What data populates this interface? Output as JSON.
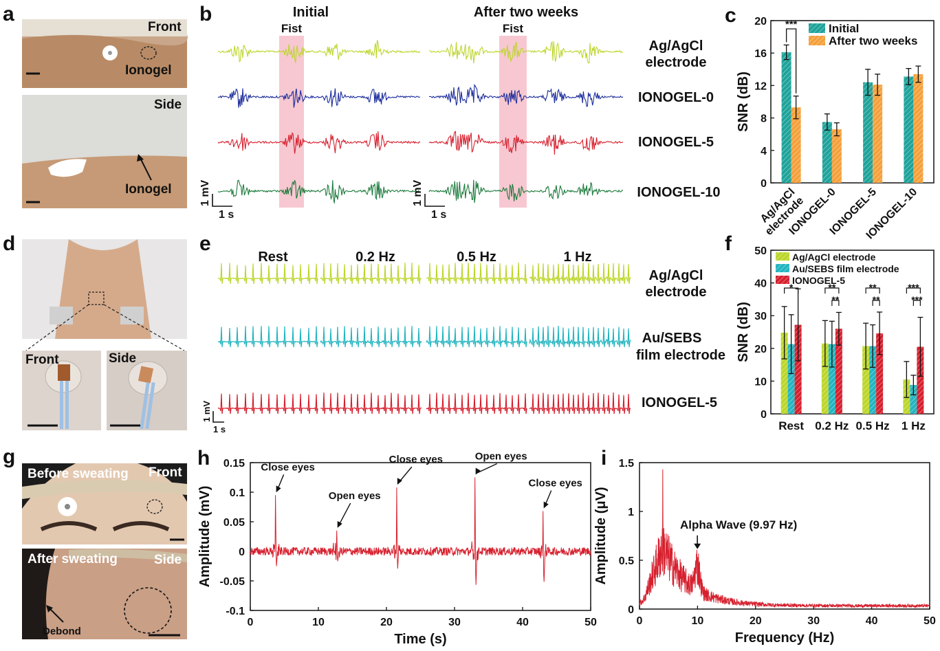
{
  "panels": {
    "a": {
      "letter": "a",
      "front_label": "Front",
      "side_label": "Side",
      "ionogel_label_top": "Ionogel",
      "ionogel_label_bottom": "Ionogel"
    },
    "b": {
      "letter": "b",
      "col_titles": [
        "Initial",
        "After two weeks"
      ],
      "fist_label": "Fist",
      "row_labels": [
        "Ag/AgCl",
        "electrode",
        "IONOGEL-0",
        "IONOGEL-5",
        "IONOGEL-10"
      ],
      "row_colors": [
        "#bcd62a",
        "#1a2b9b",
        "#d6202e",
        "#1c7a3c"
      ],
      "scale_v": "1 mV",
      "scale_t": "1 s"
    },
    "d": {
      "letter": "d",
      "front_label": "Front",
      "side_label": "Side"
    },
    "e": {
      "letter": "e",
      "col_titles": [
        "Rest",
        "0.2 Hz",
        "0.5 Hz",
        "1 Hz"
      ],
      "row_labels": [
        "Ag/AgCl",
        "electrode",
        "Au/SEBS",
        "film electrode",
        "IONOGEL-5"
      ],
      "row_colors": [
        "#bcd62a",
        "#22b5c0",
        "#d6202e"
      ],
      "scale_v": "1 mV",
      "scale_t": "1 s"
    },
    "g": {
      "letter": "g",
      "before_label": "Before sweating",
      "front_label": "Front",
      "after_label": "After sweating",
      "side_label": "Side",
      "debond_label": "Debond"
    }
  },
  "chart_data": [
    {
      "id": "c",
      "letter": "c",
      "type": "bar",
      "categories": [
        "Ag/AgCl electrode",
        "IONOGEL-0",
        "IONOGEL-5",
        "IONOGEL-10"
      ],
      "category_lines": [
        [
          "Ag/AgCl",
          "electrode"
        ],
        [
          "IONOGEL-0"
        ],
        [
          "IONOGEL-5"
        ],
        [
          "IONOGEL-10"
        ]
      ],
      "series": [
        {
          "name": "Initial",
          "color": "#1fa39a",
          "values": [
            16.1,
            7.5,
            12.4,
            13.1
          ],
          "errors": [
            0.9,
            1.0,
            1.6,
            1.0
          ]
        },
        {
          "name": "After two weeks",
          "color": "#f5a03a",
          "values": [
            9.3,
            6.6,
            12.1,
            13.4
          ],
          "errors": [
            1.4,
            0.8,
            1.3,
            1.0
          ]
        }
      ],
      "ylabel": "SNR (dB)",
      "xlabel": "",
      "ylim": [
        0,
        20
      ],
      "yticks": [
        0,
        4,
        8,
        12,
        16,
        20
      ],
      "legend_position": "top-right",
      "significance": [
        {
          "category": "Ag/AgCl electrode",
          "label": "***"
        }
      ]
    },
    {
      "id": "f",
      "letter": "f",
      "type": "bar",
      "categories": [
        "Rest",
        "0.2 Hz",
        "0.5 Hz",
        "1 Hz"
      ],
      "series": [
        {
          "name": "Ag/AgCl electrode",
          "color": "#bcd62a",
          "values": [
            24.8,
            21.5,
            20.7,
            10.5
          ],
          "errors": [
            8.0,
            7.0,
            7.0,
            5.5
          ]
        },
        {
          "name": "Au/SEBS film electrode",
          "color": "#22b5c0",
          "values": [
            21.3,
            21.3,
            20.7,
            8.8
          ],
          "errors": [
            9.0,
            7.0,
            6.5,
            3.0
          ]
        },
        {
          "name": "IONOGEL-5",
          "color": "#d6202e",
          "values": [
            27.2,
            26.0,
            24.6,
            20.5
          ],
          "errors": [
            11.0,
            5.0,
            6.5,
            9.0
          ]
        }
      ],
      "ylabel": "SNR (dB)",
      "xlabel": "",
      "ylim": [
        0,
        50
      ],
      "yticks": [
        0,
        10,
        20,
        30,
        40,
        50
      ],
      "legend_position": "top-left",
      "significance": [
        {
          "category": "Rest",
          "labels": [
            "*"
          ]
        },
        {
          "category": "0.2 Hz",
          "labels": [
            "**",
            "**"
          ]
        },
        {
          "category": "0.5 Hz",
          "labels": [
            "**",
            "**"
          ]
        },
        {
          "category": "1 Hz",
          "labels": [
            "***",
            "***"
          ]
        }
      ]
    },
    {
      "id": "h",
      "letter": "h",
      "type": "line",
      "series": [
        {
          "name": "",
          "color": "#d6202e"
        }
      ],
      "xlabel": "Time (s)",
      "ylabel": "Amplitude (mV)",
      "xlim": [
        0,
        50
      ],
      "ylim": [
        -0.1,
        0.15
      ],
      "xticks": [
        0,
        10,
        20,
        30,
        40,
        50
      ],
      "yticks": [
        -0.1,
        -0.05,
        0,
        0.05,
        0.1,
        0.15
      ],
      "ytick_labels": [
        "-0.1",
        "-0.05",
        "0",
        "0.05",
        "0.1",
        "0.15"
      ],
      "events": [
        {
          "x": 3.7,
          "peak": 0.095,
          "trough": -0.03,
          "label": "Close eyes"
        },
        {
          "x": 12.7,
          "peak": 0.035,
          "trough": -0.02,
          "label": "Open eyes"
        },
        {
          "x": 21.5,
          "peak": 0.108,
          "trough": -0.035,
          "label": "Close eyes"
        },
        {
          "x": 33.0,
          "peak": 0.125,
          "trough": -0.068,
          "label": "Open eyes"
        },
        {
          "x": 43.0,
          "peak": 0.068,
          "trough": -0.062,
          "label": "Close eyes"
        }
      ]
    },
    {
      "id": "i",
      "letter": "i",
      "type": "line",
      "series": [
        {
          "name": "",
          "color": "#d6202e"
        }
      ],
      "xlabel": "Frequency (Hz)",
      "ylabel": "Amplitude (μV)",
      "xlim": [
        0,
        50
      ],
      "ylim": [
        0,
        1.5
      ],
      "xticks": [
        0,
        10,
        20,
        30,
        40,
        50
      ],
      "yticks": [
        0,
        0.5,
        1,
        1.5
      ],
      "ytick_labels": [
        "0",
        "0.5",
        "1",
        "1.5"
      ],
      "peak": {
        "x": 4.0,
        "y": 1.43
      },
      "annotation": {
        "x": 9.97,
        "y": 0.6,
        "label": "Alpha Wave (9.97 Hz)"
      }
    }
  ]
}
